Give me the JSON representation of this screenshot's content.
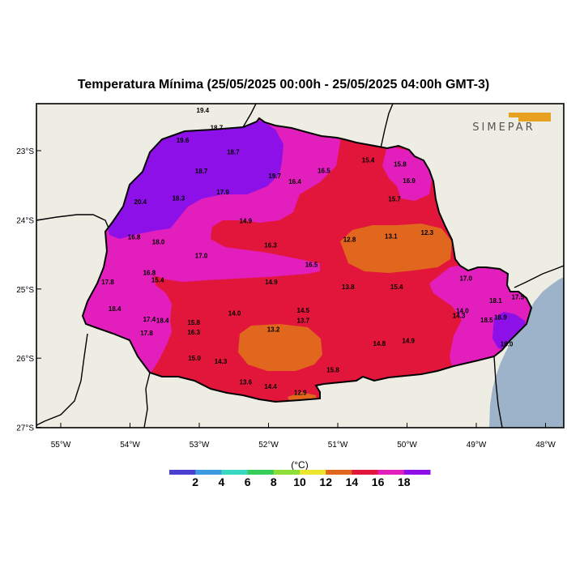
{
  "title": "Temperatura Mínima (25/05/2025 00:00h - 25/05/2025 04:00h GMT-3)",
  "logo": {
    "text": "SIMEPAR",
    "icon": "simepar-logo-icon"
  },
  "map": {
    "lat_labels": [
      "23°S",
      "24°S",
      "25°S",
      "26°S",
      "27°S"
    ],
    "lon_labels": [
      "55°W",
      "54°W",
      "53°W",
      "52°W",
      "51°W",
      "50°W",
      "49°W",
      "48°W"
    ],
    "colors": {
      "land": "#eeede4",
      "ocean": "#9cb3c9",
      "border": "#000000"
    }
  },
  "legend": {
    "unit": "(°C)",
    "labels": [
      "2",
      "4",
      "6",
      "8",
      "10",
      "12",
      "14",
      "16",
      "18"
    ],
    "colors": [
      "#4a3fd0",
      "#3c9be0",
      "#38d8c0",
      "#38cc5a",
      "#8ede3a",
      "#ece52e",
      "#e1661e",
      "#e2163a",
      "#e21ebc",
      "#8d10e8"
    ]
  },
  "stations": [
    {
      "v": "19.4",
      "lon": -52.95,
      "lat": -22.45
    },
    {
      "v": "18.7",
      "lon": -52.75,
      "lat": -22.7
    },
    {
      "v": "19.6",
      "lon": -53.24,
      "lat": -22.88
    },
    {
      "v": "18.7",
      "lon": -52.51,
      "lat": -23.05
    },
    {
      "v": "18.7",
      "lon": -52.97,
      "lat": -23.33
    },
    {
      "v": "19.7",
      "lon": -51.91,
      "lat": -23.4
    },
    {
      "v": "16.4",
      "lon": -51.62,
      "lat": -23.48
    },
    {
      "v": "16.5",
      "lon": -51.2,
      "lat": -23.32
    },
    {
      "v": "15.4",
      "lon": -50.56,
      "lat": -23.17
    },
    {
      "v": "15.8",
      "lon": -50.1,
      "lat": -23.23
    },
    {
      "v": "16.9",
      "lon": -49.97,
      "lat": -23.47
    },
    {
      "v": "15.7",
      "lon": -50.18,
      "lat": -23.73
    },
    {
      "v": "17.9",
      "lon": -52.66,
      "lat": -23.63
    },
    {
      "v": "18.3",
      "lon": -53.3,
      "lat": -23.72
    },
    {
      "v": "20.4",
      "lon": -53.85,
      "lat": -23.77
    },
    {
      "v": "14.9",
      "lon": -52.33,
      "lat": -24.05
    },
    {
      "v": "16.8",
      "lon": -53.94,
      "lat": -24.28
    },
    {
      "v": "18.0",
      "lon": -53.59,
      "lat": -24.35
    },
    {
      "v": "16.3",
      "lon": -51.97,
      "lat": -24.4
    },
    {
      "v": "12.8",
      "lon": -50.83,
      "lat": -24.32
    },
    {
      "v": "13.1",
      "lon": -50.23,
      "lat": -24.27
    },
    {
      "v": "12.3",
      "lon": -49.71,
      "lat": -24.22
    },
    {
      "v": "17.0",
      "lon": -52.97,
      "lat": -24.55
    },
    {
      "v": "16.5",
      "lon": -51.38,
      "lat": -24.68
    },
    {
      "v": "16.8",
      "lon": -53.72,
      "lat": -24.8
    },
    {
      "v": "15.4",
      "lon": -53.6,
      "lat": -24.9
    },
    {
      "v": "14.9",
      "lon": -51.96,
      "lat": -24.93
    },
    {
      "v": "17.0",
      "lon": -49.15,
      "lat": -24.88
    },
    {
      "v": "13.8",
      "lon": -50.85,
      "lat": -25.0
    },
    {
      "v": "15.4",
      "lon": -50.15,
      "lat": -25.0
    },
    {
      "v": "17.8",
      "lon": -54.32,
      "lat": -24.93
    },
    {
      "v": "18.1",
      "lon": -48.72,
      "lat": -25.2
    },
    {
      "v": "17.5",
      "lon": -48.4,
      "lat": -25.15
    },
    {
      "v": "18.4",
      "lon": -54.22,
      "lat": -25.32
    },
    {
      "v": "14.0",
      "lon": -49.2,
      "lat": -25.35
    },
    {
      "v": "14.3",
      "lon": -49.25,
      "lat": -25.42
    },
    {
      "v": "18.9",
      "lon": -48.65,
      "lat": -25.44
    },
    {
      "v": "18.5",
      "lon": -48.85,
      "lat": -25.48
    },
    {
      "v": "14.0",
      "lon": -52.49,
      "lat": -25.38
    },
    {
      "v": "14.5",
      "lon": -51.5,
      "lat": -25.34
    },
    {
      "v": "13.7",
      "lon": -51.5,
      "lat": -25.49
    },
    {
      "v": "17.4",
      "lon": -53.72,
      "lat": -25.47
    },
    {
      "v": "18.4",
      "lon": -53.53,
      "lat": -25.49
    },
    {
      "v": "15.8",
      "lon": -53.08,
      "lat": -25.52
    },
    {
      "v": "13.2",
      "lon": -51.93,
      "lat": -25.62
    },
    {
      "v": "17.8",
      "lon": -53.76,
      "lat": -25.67
    },
    {
      "v": "16.3",
      "lon": -53.08,
      "lat": -25.66
    },
    {
      "v": "14.8",
      "lon": -50.4,
      "lat": -25.82
    },
    {
      "v": "14.9",
      "lon": -49.98,
      "lat": -25.78
    },
    {
      "v": "18.0",
      "lon": -48.56,
      "lat": -25.83
    },
    {
      "v": "15.0",
      "lon": -53.07,
      "lat": -26.03
    },
    {
      "v": "14.3",
      "lon": -52.69,
      "lat": -26.08
    },
    {
      "v": "15.8",
      "lon": -51.07,
      "lat": -26.2
    },
    {
      "v": "13.6",
      "lon": -52.33,
      "lat": -26.38
    },
    {
      "v": "14.4",
      "lon": -51.97,
      "lat": -26.44
    },
    {
      "v": "12.9",
      "lon": -51.54,
      "lat": -26.53
    }
  ]
}
